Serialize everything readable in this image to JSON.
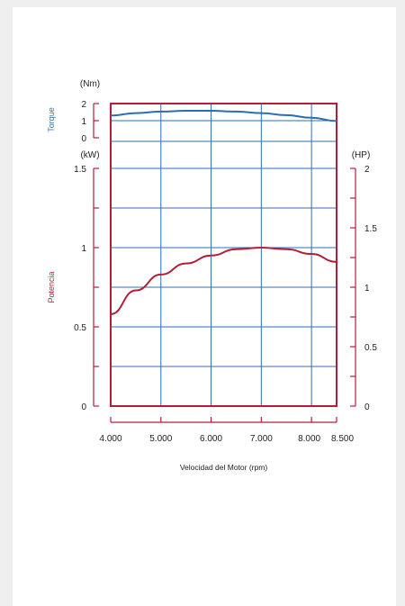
{
  "chart_data": [
    {
      "type": "line",
      "panel": "torque",
      "axis_label_rotated": "Torque",
      "unit_left": "(Nm)",
      "ylim": [
        0,
        2
      ],
      "yticks": [
        "0",
        "1",
        "2"
      ],
      "series": [
        {
          "name": "Torque",
          "color": "#2a6fb5",
          "x": [
            4000,
            4500,
            5000,
            5500,
            6000,
            6500,
            7000,
            7500,
            8000,
            8500
          ],
          "values": [
            1.3,
            1.44,
            1.53,
            1.58,
            1.58,
            1.53,
            1.44,
            1.32,
            1.17,
            0.98
          ]
        }
      ]
    },
    {
      "type": "line",
      "panel": "power",
      "axis_label_rotated": "Potencia",
      "unit_left": "(kW)",
      "unit_right": "(HP)",
      "ylim": [
        0,
        1.5
      ],
      "yticks_left": [
        "0",
        "0.5",
        "1",
        "1.5"
      ],
      "yticks_right": [
        "0",
        "0.5",
        "1",
        "1.5",
        "2"
      ],
      "xlim": [
        4000,
        8500
      ],
      "xticks": [
        "4.000",
        "5.000",
        "6.000",
        "7.000",
        "8.000",
        "8.500"
      ],
      "xlabel": "Velocidad del Motor (rpm)",
      "series": [
        {
          "name": "Potencia",
          "color": "#b41e38",
          "x": [
            4000,
            4500,
            5000,
            5500,
            6000,
            6500,
            7000,
            7500,
            8000,
            8500
          ],
          "values": [
            0.58,
            0.73,
            0.83,
            0.9,
            0.95,
            0.99,
            1.0,
            0.99,
            0.96,
            0.91
          ]
        }
      ]
    }
  ],
  "colors": {
    "frame": "#b41e38",
    "grid": "#2a6fb5",
    "torque_label": "#2a6fb5",
    "power_label": "#b41e38",
    "text": "#222222"
  }
}
